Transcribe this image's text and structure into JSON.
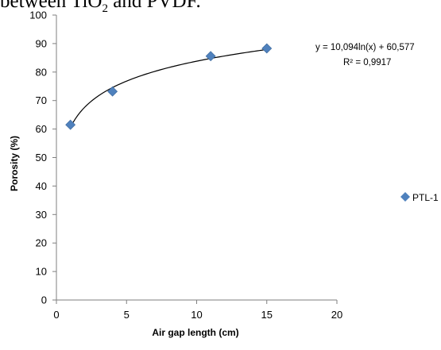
{
  "caption": {
    "prefix": "between TiO",
    "sub": "2",
    "suffix": " and PVDF."
  },
  "chart_data": {
    "type": "scatter",
    "xlabel": "Air gap length (cm)",
    "ylabel": "Porosity (%)",
    "xlim": [
      0,
      20
    ],
    "ylim": [
      0,
      100
    ],
    "xticks": [
      "0",
      "5",
      "10",
      "15",
      "20"
    ],
    "yticks": [
      "0",
      "10",
      "20",
      "30",
      "40",
      "50",
      "60",
      "70",
      "80",
      "90",
      "100"
    ],
    "grid": false,
    "legend_position": "right",
    "series": [
      {
        "name": "PTL-1",
        "color": "#4f81bd",
        "marker": "diamond",
        "x": [
          1,
          4,
          11,
          15
        ],
        "y": [
          61.5,
          73.2,
          85.6,
          88.3
        ]
      }
    ],
    "trendline": {
      "type": "logarithmic",
      "a": 10.094,
      "b": 60.577,
      "color": "#000000",
      "equation": "y = 10,094ln(x) + 60,577",
      "r2": "R² = 0,9917"
    }
  }
}
